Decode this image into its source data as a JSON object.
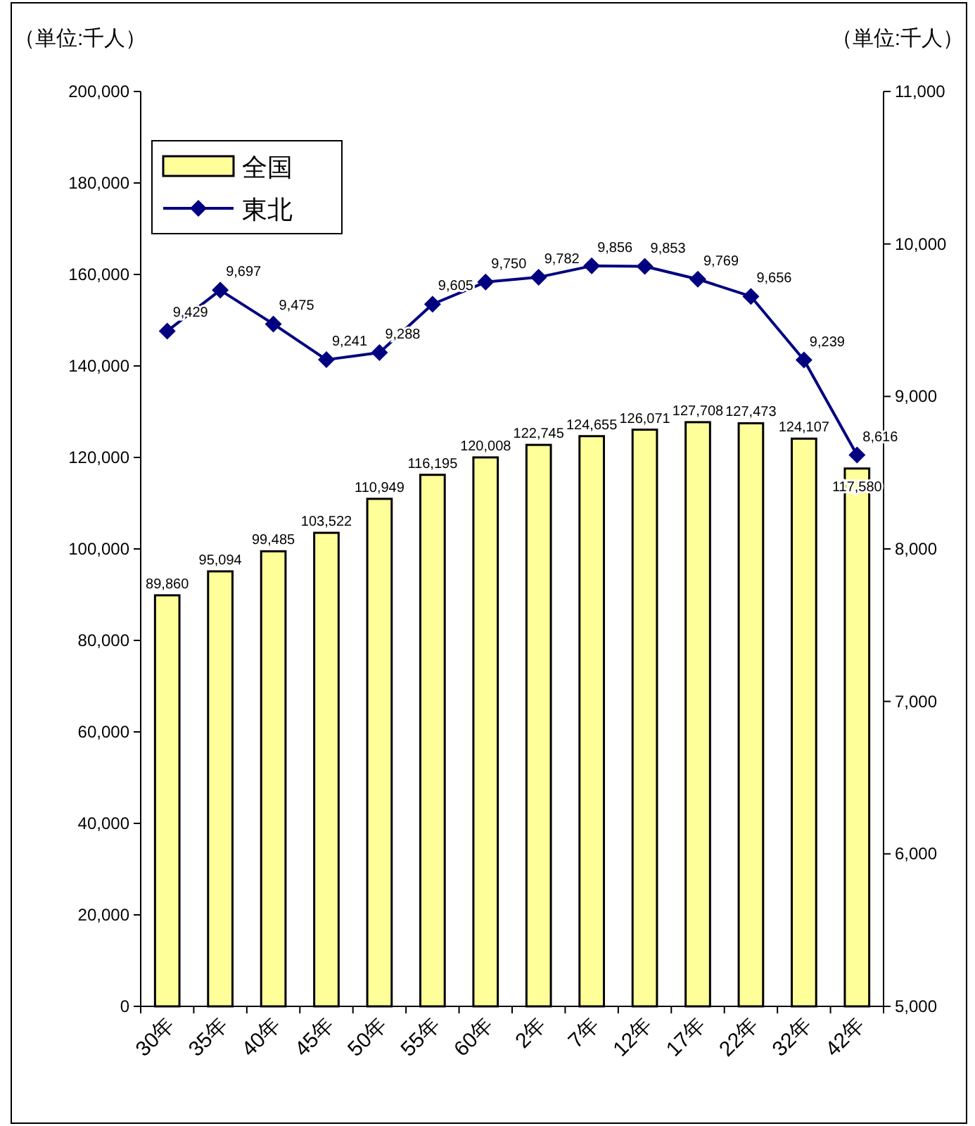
{
  "chart_data": {
    "type": "bar",
    "ylabel": "（単位:千人）",
    "y2label": "（単位:千人）",
    "categories": [
      "30年",
      "35年",
      "40年",
      "45年",
      "50年",
      "55年",
      "60年",
      "2年",
      "7年",
      "12年",
      "17年",
      "22年",
      "32年",
      "42年"
    ],
    "series": [
      {
        "name": "全国",
        "color": "#ffff99",
        "values": [
          89860,
          95094,
          99485,
          103522,
          110949,
          116195,
          120008,
          122745,
          124655,
          126071,
          127708,
          127473,
          124107,
          117580
        ],
        "value_labels": [
          "89,860",
          "95,094",
          "99,485",
          "103,522",
          "110,949",
          "116,195",
          "120,008",
          "122,745",
          "124,655",
          "126,071",
          "127,708",
          "127,473",
          "124,107",
          "117,580"
        ]
      },
      {
        "name": "東北",
        "type": "line",
        "axis": "y2",
        "color": "#000080",
        "values": [
          9429,
          9697,
          9475,
          9241,
          9288,
          9605,
          9750,
          9782,
          9856,
          9853,
          9769,
          9656,
          9239,
          8616
        ],
        "value_labels": [
          "9,429",
          "9,697",
          "9,475",
          "9,241",
          "9,288",
          "9,605",
          "9,750",
          "9,782",
          "9,856",
          "9,853",
          "9,769",
          "9,656",
          "9,239",
          "8,616"
        ]
      }
    ],
    "ylim": [
      0,
      200000
    ],
    "yticks": [
      {
        "value": 0,
        "label": "0"
      },
      {
        "value": 20000,
        "label": "20,000"
      },
      {
        "value": 40000,
        "label": "40,000"
      },
      {
        "value": 60000,
        "label": "60,000"
      },
      {
        "value": 80000,
        "label": "80,000"
      },
      {
        "value": 100000,
        "label": "100,000"
      },
      {
        "value": 120000,
        "label": "120,000"
      },
      {
        "value": 140000,
        "label": "140,000"
      },
      {
        "value": 160000,
        "label": "160,000"
      },
      {
        "value": 180000,
        "label": "180,000"
      },
      {
        "value": 200000,
        "label": "200,000"
      }
    ],
    "y2lim": [
      5000,
      11000
    ],
    "y2ticks": [
      {
        "value": 5000,
        "label": "5,000"
      },
      {
        "value": 6000,
        "label": "6,000"
      },
      {
        "value": 7000,
        "label": "7,000"
      },
      {
        "value": 8000,
        "label": "8,000"
      },
      {
        "value": 9000,
        "label": "9,000"
      },
      {
        "value": 10000,
        "label": "10,000"
      },
      {
        "value": 11000,
        "label": "11,000"
      }
    ],
    "legend": "top left",
    "grid": false,
    "marker": "diamond"
  }
}
